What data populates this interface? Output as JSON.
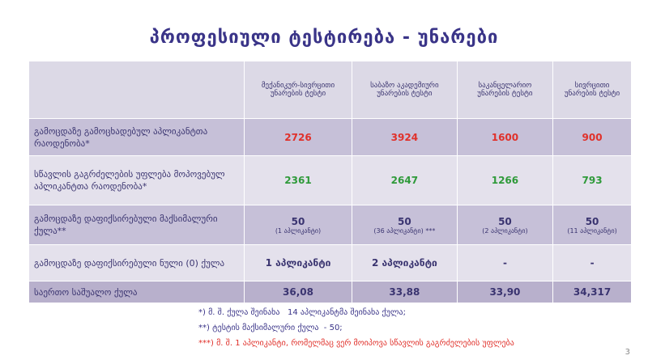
{
  "header": {
    "title": "პროფესიული ტესტირება - უნარები"
  },
  "table": {
    "columns": [
      "მექანიკურ-სივრცითი უნარების ტესტი",
      "საბაზო აკადემიური უნარების ტესტი",
      "საკანცელარიო უნარების ტესტი",
      "სივრცითი უნარების ტესტი"
    ],
    "rows": [
      {
        "label": "გამოცდაზე გამოცხადებულ აპლიკანტთა რაოდენობა*",
        "color": "#e0312b",
        "cells": [
          "2726",
          "3924",
          "1600",
          "900"
        ]
      },
      {
        "label": "სწავლის გაგრძელების უფლება მოპოვებულ აპლიკანტთა რაოდენობა*",
        "color": "#2f9a3a",
        "cells": [
          "2361",
          "2647",
          "1266",
          "793"
        ]
      },
      {
        "label": "გამოცდაზე დაფიქსირებული მაქსიმალური ქულა**",
        "color": "#3a3470",
        "cells": [
          {
            "main": "50",
            "note": "(1 აპლიკანტი)"
          },
          {
            "main": "50",
            "note": "(36 აპლიკანტი) ***"
          },
          {
            "main": "50",
            "note": "(2 აპლიკანტი)"
          },
          {
            "main": "50",
            "note": "(11 აპლიკანტი)"
          }
        ]
      },
      {
        "label": "გამოცდაზე დაფიქსირებული ნული (0) ქულა",
        "color": "#3a3470",
        "cells": [
          "1 აპლიკანტი",
          "2 აპლიკანტი",
          "-",
          "-"
        ]
      },
      {
        "label": "საერთო საშუალო ქულა",
        "color": "#3a3470",
        "cells": [
          "36,08",
          "33,88",
          "33,90",
          "34,317"
        ]
      }
    ]
  },
  "footnotes": [
    "*) მ. შ. ქულა შეინახა   14 აპლიკანტმა შეინახა ქულა;",
    "**) ტესტის მაქსიმალური ქულა  - 50;",
    "***) მ. შ. 1 აპლიკანტი, რომელმაც ვერ მოიპოვა სწავლის გაგრძელების უფლება"
  ],
  "page_number": "3"
}
